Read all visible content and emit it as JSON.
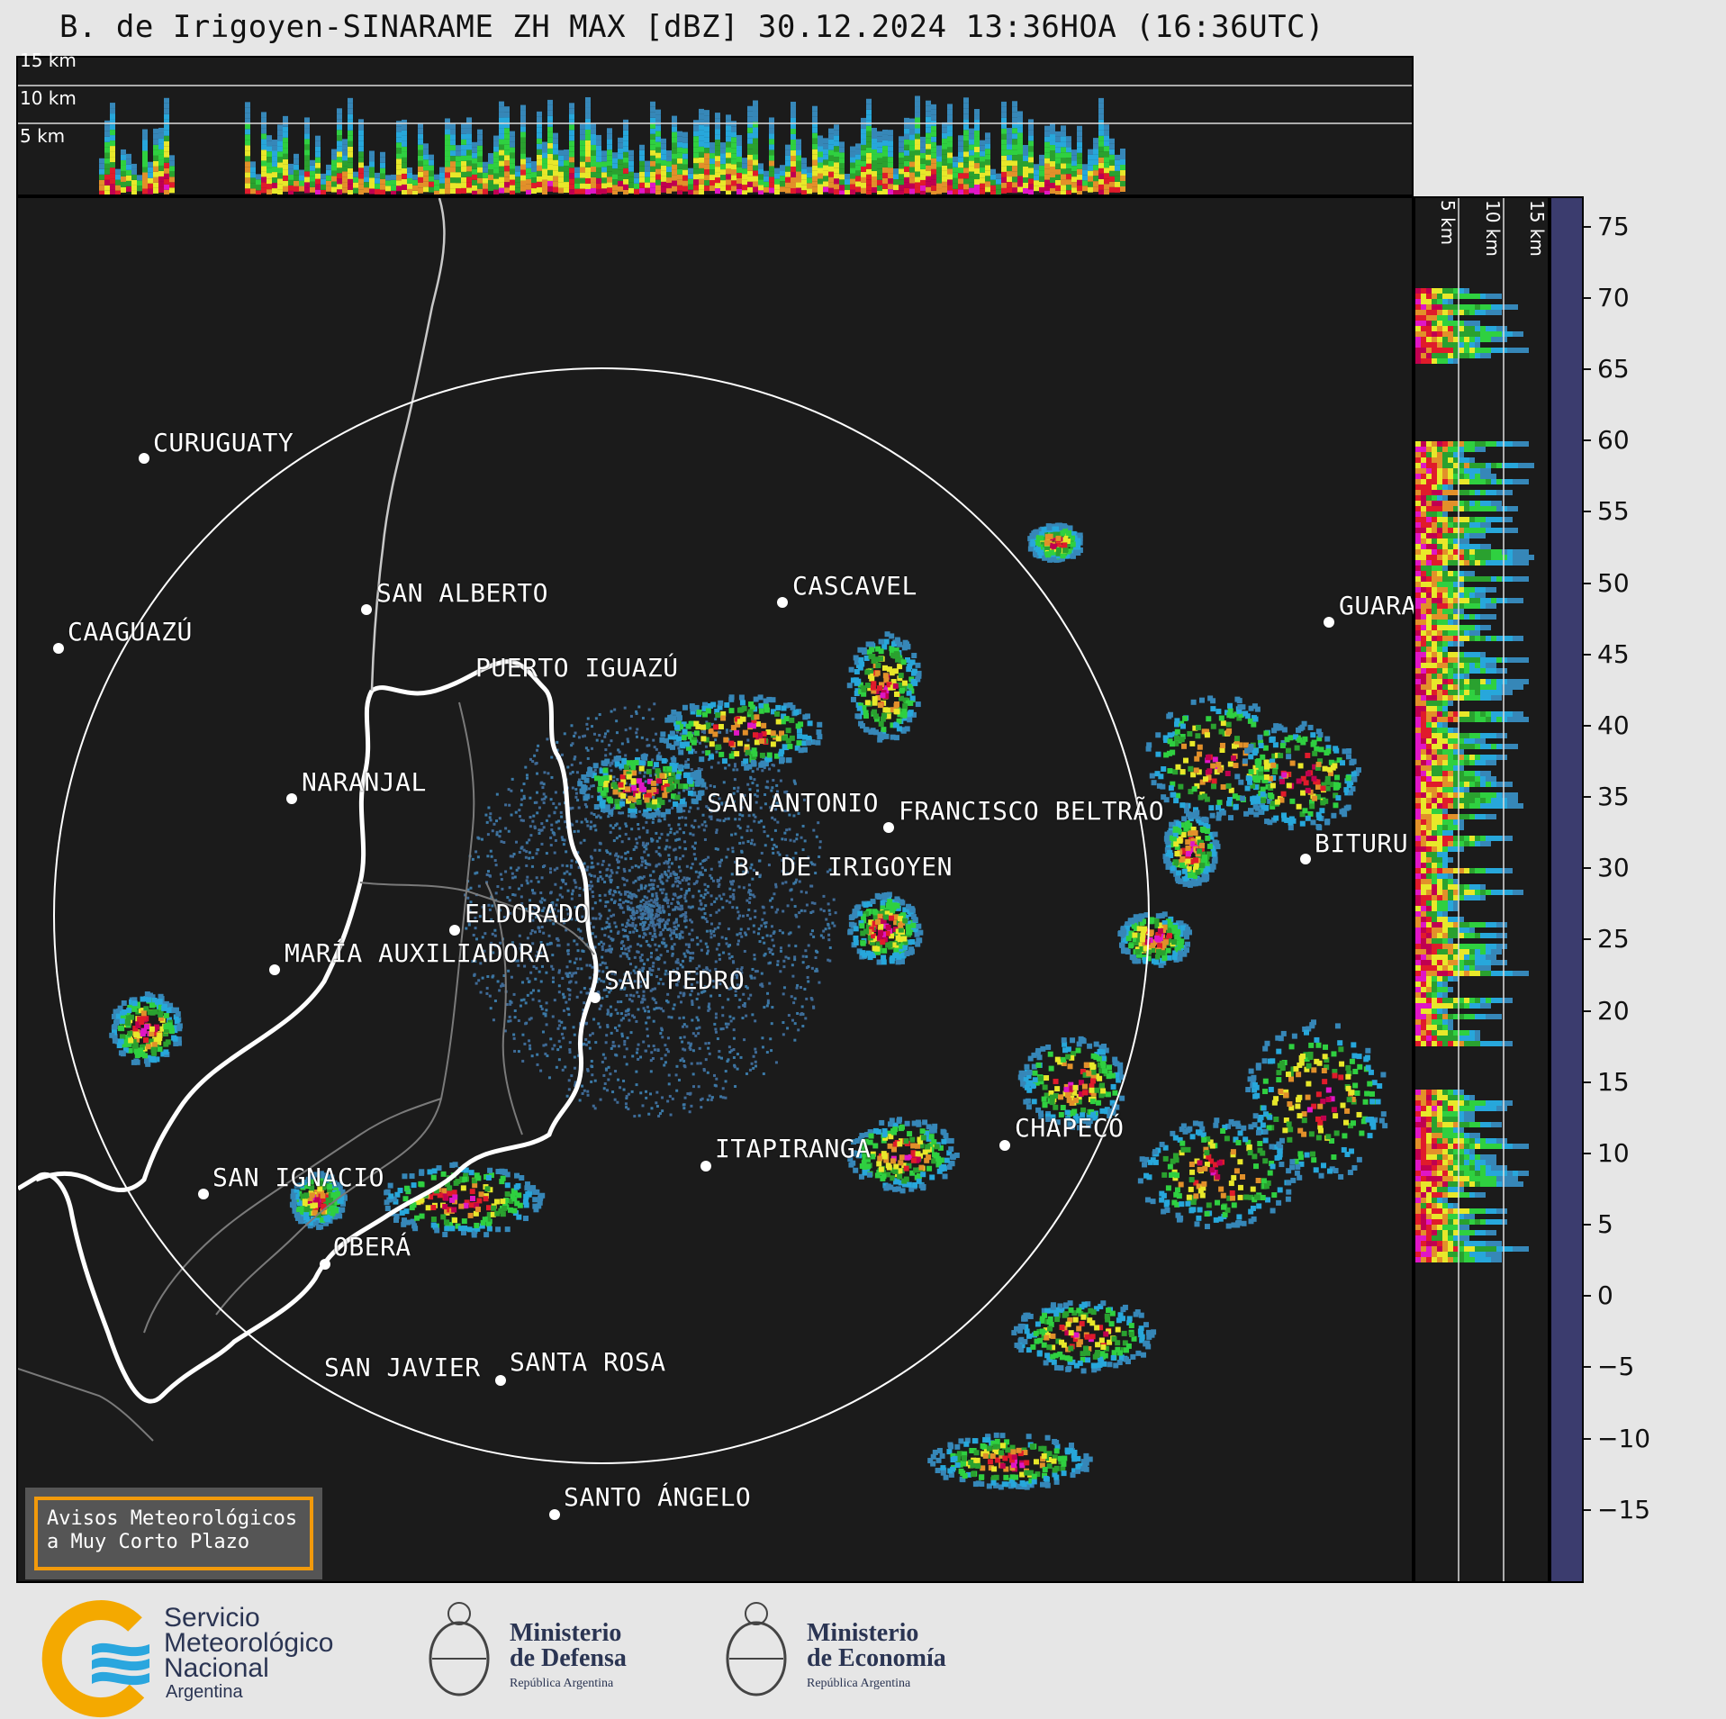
{
  "title": "B. de Irigoyen-SINARAME ZH MAX [dBZ] 30.12.2024 13:36HOA (16:36UTC)",
  "top_panel": {
    "height_labels": [
      "15 km",
      "10 km",
      "5 km"
    ]
  },
  "side_panel": {
    "height_labels": [
      "5 km",
      "10 km",
      "15 km"
    ]
  },
  "cities": [
    {
      "name": "CURUGUATY"
    },
    {
      "name": "SAN ALBERTO"
    },
    {
      "name": "CASCAVEL"
    },
    {
      "name": "CAAGUAZÚ"
    },
    {
      "name": "GUARA"
    },
    {
      "name": "PUERTO IGUAZÚ"
    },
    {
      "name": "NARANJAL"
    },
    {
      "name": "SAN ANTONIO"
    },
    {
      "name": "FRANCISCO BELTRÃO"
    },
    {
      "name": "BITURU"
    },
    {
      "name": "B. DE IRIGOYEN"
    },
    {
      "name": "ELDORADO"
    },
    {
      "name": "MARÍA AUXILIADORA"
    },
    {
      "name": "SAN PEDRO"
    },
    {
      "name": "CHAPECÓ"
    },
    {
      "name": "ITAPIRANGA"
    },
    {
      "name": "SAN IGNACIO"
    },
    {
      "name": "OBERÁ"
    },
    {
      "name": "SAN JAVIER"
    },
    {
      "name": "SANTA ROSA"
    },
    {
      "name": "SANTO ÁNGELO"
    }
  ],
  "colorbar": {
    "unit": "dBZ",
    "tick_labels": [
      "75",
      "70",
      "65",
      "60",
      "55",
      "50",
      "45",
      "40",
      "35",
      "30",
      "25",
      "20",
      "15",
      "10",
      "5",
      "0",
      "−5",
      "−10",
      "−15"
    ],
    "range": [
      -20,
      77
    ],
    "colors": {
      "-20": "#3b3c6e",
      "-15": "#3e4a80",
      "-10": "#3f5a8c",
      "-5": "#3f6a96",
      "0": "#3b79a6",
      "5": "#3687b8",
      "10": "#2f95c6",
      "15": "#27a7db",
      "20": "#2fd040",
      "25": "#2aa12f",
      "30": "#e8e82a",
      "35": "#d8c334",
      "40": "#e2902a",
      "45": "#e01b2b",
      "50": "#c00050",
      "55": "#e016c6",
      "58": "#9c0fa6",
      "60": "#ffffff",
      "65": "#c6eee0",
      "70": "#9fe2c8"
    }
  },
  "warning": {
    "line1": "Avisos Meteorológicos",
    "line2": "a Muy Corto Plazo"
  },
  "logos": {
    "smn_line1": "Servicio",
    "smn_line2": "Meteorológico",
    "smn_line3": "Nacional",
    "smn_line4": "Argentina",
    "defensa_line1": "Ministerio",
    "defensa_line2": "de Defensa",
    "defensa_line3": "República Argentina",
    "economia_line1": "Ministerio",
    "economia_line2": "de Economía",
    "economia_line3": "República Argentina"
  }
}
